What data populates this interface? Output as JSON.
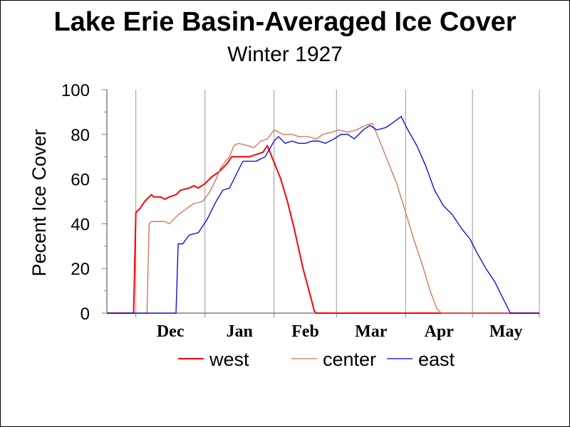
{
  "chart_data": {
    "type": "line",
    "title": "Lake Erie Basin-Averaged Ice Cover",
    "subtitle": "Winter 1927",
    "ylabel": "Pecent Ice Cover",
    "xlabel": "",
    "ylim": [
      0,
      100
    ],
    "yticks": [
      "0",
      "20",
      "40",
      "60",
      "80",
      "100"
    ],
    "xlim": [
      "Nov 18",
      "May 31"
    ],
    "x_month_labels": [
      "Dec",
      "Jan",
      "Feb",
      "Mar",
      "Apr",
      "May"
    ],
    "grid": "vertical lines at month boundaries",
    "legend": "bottom",
    "series": [
      {
        "name": "west",
        "color": "#ff0000",
        "points": [
          [
            "Nov 18",
            0
          ],
          [
            "Nov 30",
            0
          ],
          [
            "Dec 1",
            45
          ],
          [
            "Dec 3",
            47
          ],
          [
            "Dec 5",
            50
          ],
          [
            "Dec 7",
            52
          ],
          [
            "Dec 8",
            53
          ],
          [
            "Dec 9",
            52
          ],
          [
            "Dec 12",
            52
          ],
          [
            "Dec 14",
            51
          ],
          [
            "Dec 16",
            52
          ],
          [
            "Dec 19",
            53
          ],
          [
            "Dec 21",
            55
          ],
          [
            "Dec 25",
            56
          ],
          [
            "Dec 27",
            57
          ],
          [
            "Dec 29",
            56
          ],
          [
            "Jan 1",
            58
          ],
          [
            "Jan 4",
            61
          ],
          [
            "Jan 7",
            63
          ],
          [
            "Jan 9",
            65
          ],
          [
            "Jan 11",
            67
          ],
          [
            "Jan 13",
            70
          ],
          [
            "Jan 18",
            70
          ],
          [
            "Jan 21",
            70
          ],
          [
            "Jan 24",
            71
          ],
          [
            "Jan 27",
            72
          ],
          [
            "Jan 29",
            75
          ],
          [
            "Jan 31",
            70
          ],
          [
            "Feb 4",
            60
          ],
          [
            "Feb 7",
            50
          ],
          [
            "Feb 10",
            38
          ],
          [
            "Feb 14",
            20
          ],
          [
            "Feb 18",
            5
          ],
          [
            "Feb 19",
            1
          ],
          [
            "Feb 20",
            0
          ],
          [
            "May 31",
            0
          ]
        ]
      },
      {
        "name": "center",
        "color": "#d07050",
        "points": [
          [
            "Nov 18",
            0
          ],
          [
            "Dec 6",
            0
          ],
          [
            "Dec 7",
            40
          ],
          [
            "Dec 8",
            41
          ],
          [
            "Dec 10",
            41
          ],
          [
            "Dec 14",
            41
          ],
          [
            "Dec 16",
            40
          ],
          [
            "Dec 18",
            42
          ],
          [
            "Dec 20",
            44
          ],
          [
            "Dec 24",
            47
          ],
          [
            "Dec 27",
            49
          ],
          [
            "Dec 31",
            50
          ],
          [
            "Jan 3",
            54
          ],
          [
            "Jan 6",
            60
          ],
          [
            "Jan 8",
            65
          ],
          [
            "Jan 12",
            70
          ],
          [
            "Jan 14",
            75
          ],
          [
            "Jan 16",
            76
          ],
          [
            "Jan 20",
            75
          ],
          [
            "Jan 23",
            74
          ],
          [
            "Jan 26",
            77
          ],
          [
            "Jan 29",
            78
          ],
          [
            "Feb 1",
            82
          ],
          [
            "Feb 5",
            80
          ],
          [
            "Feb 9",
            80
          ],
          [
            "Feb 12",
            79
          ],
          [
            "Feb 16",
            79
          ],
          [
            "Feb 20",
            78
          ],
          [
            "Feb 23",
            80
          ],
          [
            "Feb 27",
            81
          ],
          [
            "Mar 2",
            82
          ],
          [
            "Mar 6",
            81
          ],
          [
            "Mar 10",
            82
          ],
          [
            "Mar 14",
            84
          ],
          [
            "Mar 17",
            85
          ],
          [
            "Mar 20",
            78
          ],
          [
            "Mar 24",
            68
          ],
          [
            "Mar 28",
            58
          ],
          [
            "Apr 1",
            45
          ],
          [
            "Apr 5",
            32
          ],
          [
            "Apr 9",
            20
          ],
          [
            "Apr 12",
            10
          ],
          [
            "Apr 15",
            2
          ],
          [
            "Apr 17",
            0
          ],
          [
            "May 31",
            0
          ]
        ]
      },
      {
        "name": "east",
        "color": "#0000e0",
        "points": [
          [
            "Nov 18",
            0
          ],
          [
            "Dec 19",
            0
          ],
          [
            "Dec 20",
            31
          ],
          [
            "Dec 22",
            31
          ],
          [
            "Dec 25",
            35
          ],
          [
            "Dec 29",
            36
          ],
          [
            "Jan 2",
            42
          ],
          [
            "Jan 6",
            50
          ],
          [
            "Jan 9",
            55
          ],
          [
            "Jan 12",
            56
          ],
          [
            "Jan 15",
            62
          ],
          [
            "Jan 18",
            68
          ],
          [
            "Jan 20",
            68
          ],
          [
            "Jan 24",
            68
          ],
          [
            "Jan 28",
            70
          ],
          [
            "Feb 1",
            77
          ],
          [
            "Feb 3",
            79
          ],
          [
            "Feb 6",
            76
          ],
          [
            "Feb 9",
            77
          ],
          [
            "Feb 12",
            76
          ],
          [
            "Feb 15",
            76
          ],
          [
            "Feb 18",
            77
          ],
          [
            "Feb 21",
            77
          ],
          [
            "Feb 24",
            76
          ],
          [
            "Feb 28",
            78
          ],
          [
            "Mar 3",
            80
          ],
          [
            "Mar 6",
            80
          ],
          [
            "Mar 9",
            78
          ],
          [
            "Mar 13",
            82
          ],
          [
            "Mar 16",
            84
          ],
          [
            "Mar 19",
            82
          ],
          [
            "Mar 23",
            83
          ],
          [
            "Mar 26",
            85
          ],
          [
            "Mar 30",
            88
          ],
          [
            "Apr 2",
            82
          ],
          [
            "Apr 6",
            75
          ],
          [
            "Apr 10",
            66
          ],
          [
            "Apr 14",
            55
          ],
          [
            "Apr 18",
            48
          ],
          [
            "Apr 22",
            44
          ],
          [
            "Apr 26",
            38
          ],
          [
            "Apr 30",
            33
          ],
          [
            "May 3",
            27
          ],
          [
            "May 7",
            20
          ],
          [
            "May 11",
            14
          ],
          [
            "May 15",
            6
          ],
          [
            "May 18",
            0
          ],
          [
            "May 31",
            0
          ]
        ]
      }
    ]
  }
}
